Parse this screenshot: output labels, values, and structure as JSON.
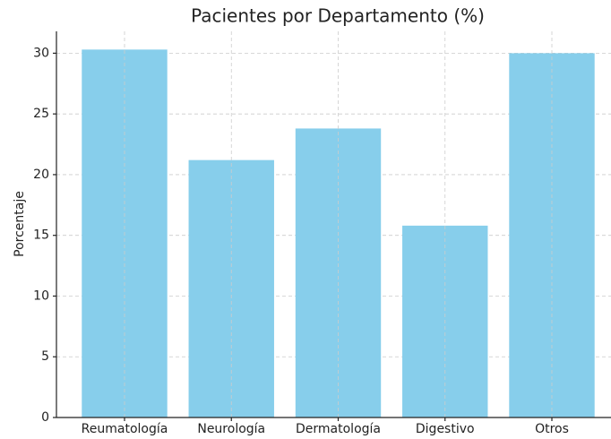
{
  "chart_data": {
    "type": "bar",
    "title": "Pacientes por Departamento (%)",
    "y_label": "Porcentaje",
    "categories": [
      "Reumatología",
      "Neurología",
      "Dermatología",
      "Digestivo",
      "Otros"
    ],
    "values": [
      30.3,
      21.2,
      23.8,
      15.8,
      30.0
    ],
    "color": "#87ceeb",
    "ylim": [
      0,
      31.8
    ],
    "yticks": [
      0,
      5,
      10,
      15,
      20,
      25,
      30
    ],
    "grid": true
  }
}
